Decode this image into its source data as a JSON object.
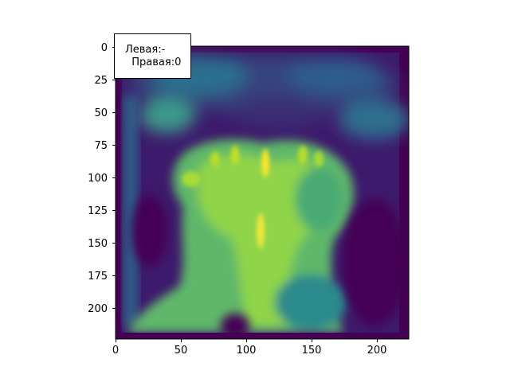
{
  "figure": {
    "colormap": "viridis",
    "x_ticks": [
      "0",
      "50",
      "100",
      "150",
      "200"
    ],
    "y_ticks": [
      "0",
      "25",
      "50",
      "75",
      "100",
      "125",
      "150",
      "175",
      "200"
    ],
    "annotation": {
      "line1": "Левая:-",
      "line2": "  Правая:0"
    },
    "colors": {
      "background": "#440154",
      "dark_band": "#3b1c6b",
      "teal": "#21918c",
      "green": "#5ec962",
      "yellow": "#fde725"
    }
  }
}
